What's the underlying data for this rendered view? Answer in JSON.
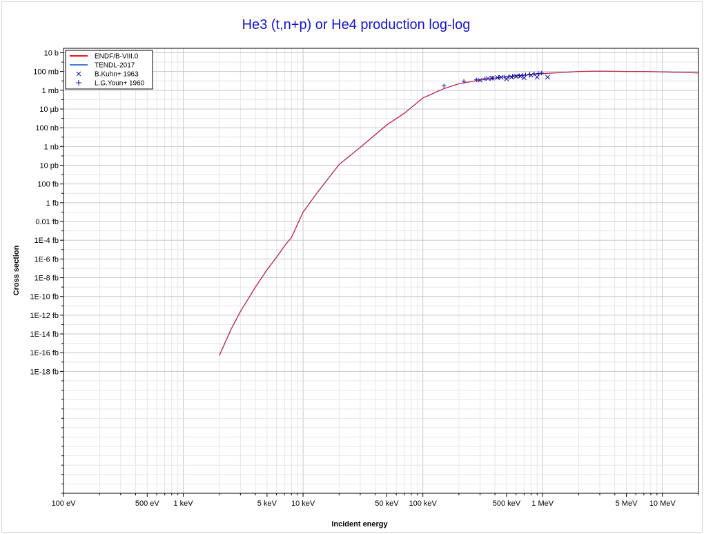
{
  "chart_data": {
    "type": "line",
    "title": "He3 (t,n+p) or He4 production log-log",
    "xlabel": "Incident energy",
    "ylabel": "Cross section",
    "x_scale": "log",
    "y_scale": "log",
    "x_unit": "eV",
    "y_unit": "barn",
    "xlim": [
      100,
      20000000
    ],
    "ylim": [
      1e-46,
      30
    ],
    "grid": true,
    "legend_position": "top-left",
    "x_ticks": [
      {
        "value": 100,
        "label": "100 eV"
      },
      {
        "value": 500,
        "label": "500 eV"
      },
      {
        "value": 1000,
        "label": "1 keV"
      },
      {
        "value": 5000,
        "label": "5 keV"
      },
      {
        "value": 10000,
        "label": "10 keV"
      },
      {
        "value": 50000,
        "label": "50 keV"
      },
      {
        "value": 100000,
        "label": "100 keV"
      },
      {
        "value": 500000,
        "label": "500 keV"
      },
      {
        "value": 1000000,
        "label": "1 MeV"
      },
      {
        "value": 5000000,
        "label": "5 MeV"
      },
      {
        "value": 10000000,
        "label": "10 MeV"
      }
    ],
    "y_ticks": [
      {
        "value": 10,
        "label": "10 b"
      },
      {
        "value": 0.1,
        "label": "100 mb"
      },
      {
        "value": 0.001,
        "label": "1 mb"
      },
      {
        "value": 1e-05,
        "label": "10 µb"
      },
      {
        "value": 1e-07,
        "label": "100 nb"
      },
      {
        "value": 1e-09,
        "label": "1 nb"
      },
      {
        "value": 1e-11,
        "label": "10 pb"
      },
      {
        "value": 1e-13,
        "label": "100 fb"
      },
      {
        "value": 1e-15,
        "label": "1 fb"
      },
      {
        "value": 1e-17,
        "label": "0.01 fb"
      },
      {
        "value": 1e-19,
        "label": "1E-4 fb"
      },
      {
        "value": 1e-21,
        "label": "1E-6 fb"
      },
      {
        "value": 1e-23,
        "label": "1E-8 fb"
      },
      {
        "value": 1e-25,
        "label": "1E-10 fb"
      },
      {
        "value": 1e-27,
        "label": "1E-12 fb"
      },
      {
        "value": 1e-29,
        "label": "1E-14 fb"
      },
      {
        "value": 1e-31,
        "label": "1E-16 fb"
      },
      {
        "value": 1e-33,
        "label": "1E-18 fb"
      }
    ],
    "series": [
      {
        "name": "ENDF/B-VIII.0",
        "kind": "line",
        "color": "#e8141e",
        "x": [
          2000,
          2500,
          3000,
          3500,
          4000,
          5000,
          6000,
          7000,
          8000,
          10000,
          13000,
          20000,
          30000,
          50000,
          70000,
          100000,
          150000,
          200000,
          300000,
          400000,
          500000,
          700000,
          1000000,
          1500000,
          2000000,
          3000000,
          5000000,
          7000000,
          10000000,
          15000000,
          20000000
        ],
        "y": [
          5e-32,
          3e-29,
          2.5e-27,
          6e-26,
          1e-24,
          7e-23,
          1.5e-21,
          2.5e-20,
          2e-19,
          1e-16,
          1e-14,
          1.2e-11,
          8e-10,
          2e-07,
          3.5e-06,
          0.00015,
          0.0015,
          0.005,
          0.012,
          0.02,
          0.028,
          0.04,
          0.06,
          0.08,
          0.1,
          0.11,
          0.1,
          0.1,
          0.09,
          0.08,
          0.07
        ]
      },
      {
        "name": "TENDL-2017",
        "kind": "line",
        "color": "#4a78d8",
        "x": [
          2000,
          2500,
          3000,
          3500,
          4000,
          5000,
          6000,
          7000,
          8000,
          10000,
          13000,
          20000,
          30000,
          50000,
          70000,
          100000,
          150000,
          200000,
          300000,
          400000,
          500000,
          700000,
          1000000,
          1500000,
          2000000,
          3000000,
          5000000,
          7000000,
          10000000,
          15000000,
          20000000
        ],
        "y": [
          5e-32,
          3e-29,
          2.5e-27,
          6e-26,
          1e-24,
          7e-23,
          1.5e-21,
          2.5e-20,
          2e-19,
          1e-16,
          1e-14,
          1.2e-11,
          8e-10,
          2e-07,
          3.5e-06,
          0.00015,
          0.0015,
          0.005,
          0.012,
          0.02,
          0.028,
          0.04,
          0.06,
          0.08,
          0.1,
          0.11,
          0.1,
          0.1,
          0.09,
          0.08,
          0.07
        ]
      },
      {
        "name": "B.Kuhn+ 1963",
        "kind": "scatter",
        "marker": "x",
        "color": "#1010a0",
        "x": [
          300000,
          350000,
          380000,
          420000,
          450000,
          500000,
          550000,
          600000,
          650000,
          700000,
          800000,
          900000,
          1100000
        ],
        "y": [
          0.012,
          0.018,
          0.02,
          0.022,
          0.024,
          0.016,
          0.025,
          0.03,
          0.032,
          0.022,
          0.04,
          0.025,
          0.025
        ]
      },
      {
        "name": "L.G.Youn+ 1960",
        "kind": "scatter",
        "marker": "+",
        "color": "#1010a0",
        "x": [
          150000,
          220000,
          280000,
          330000,
          380000,
          430000,
          480000,
          520000,
          560000,
          600000,
          640000,
          680000,
          720000,
          780000,
          850000,
          920000,
          980000
        ],
        "y": [
          0.003,
          0.009,
          0.013,
          0.017,
          0.02,
          0.024,
          0.026,
          0.028,
          0.031,
          0.034,
          0.036,
          0.04,
          0.044,
          0.05,
          0.056,
          0.062,
          0.068
        ]
      }
    ]
  }
}
